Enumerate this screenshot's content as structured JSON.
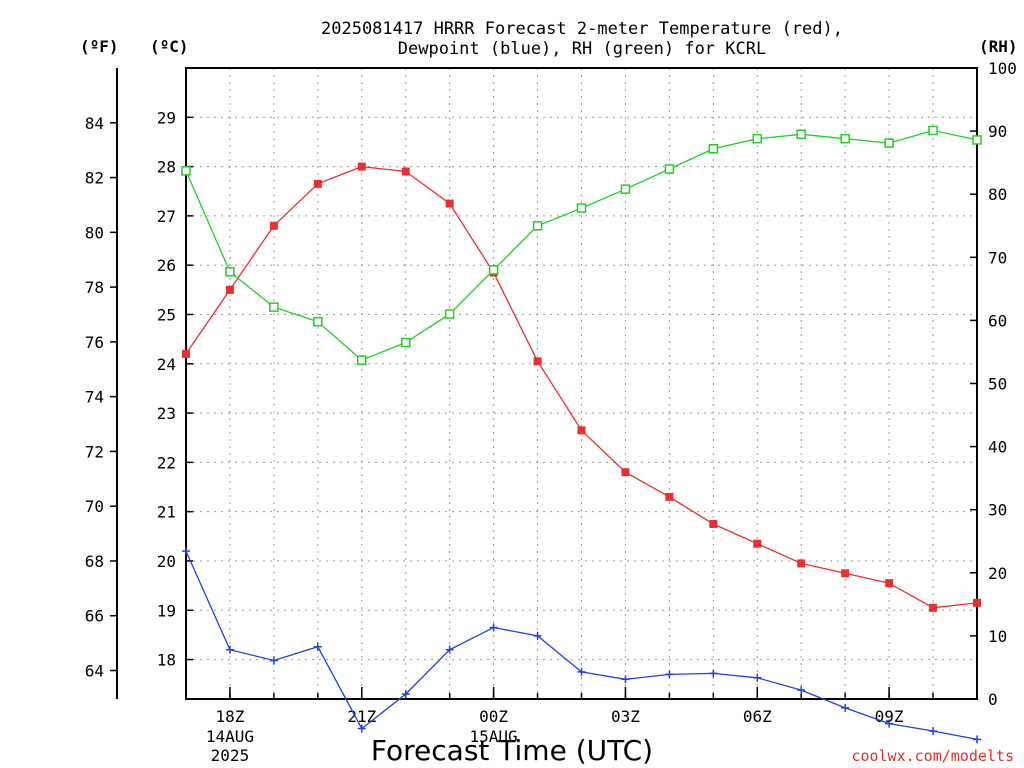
{
  "chart_data": {
    "type": "line",
    "title_line1": "2025081417 HRRR Forecast 2-meter Temperature (red),",
    "title_line2": "Dewpoint (blue), RH (green) for KCRL",
    "xlabel": "Forecast Time (UTC)",
    "credit": "coolwx.com/modelts",
    "units": {
      "fahrenheit": "(ºF)",
      "celsius": "(ºC)",
      "rh": "(RH)"
    },
    "x_hours": [
      17,
      18,
      19,
      20,
      21,
      22,
      23,
      24,
      25,
      26,
      27,
      28,
      29,
      30,
      31,
      32,
      33,
      34,
      35
    ],
    "x_range": [
      17,
      35
    ],
    "x_ticks": [
      {
        "hour": 18,
        "label": "18Z",
        "sub1": "14AUG",
        "sub2": "2025"
      },
      {
        "hour": 21,
        "label": "21Z",
        "sub1": "",
        "sub2": ""
      },
      {
        "hour": 24,
        "label": "00Z",
        "sub1": "15AUG",
        "sub2": ""
      },
      {
        "hour": 27,
        "label": "03Z",
        "sub1": "",
        "sub2": ""
      },
      {
        "hour": 30,
        "label": "06Z",
        "sub1": "",
        "sub2": ""
      },
      {
        "hour": 33,
        "label": "09Z",
        "sub1": "",
        "sub2": ""
      }
    ],
    "celsius_range": [
      17.2,
      30.0
    ],
    "celsius_ticks": [
      18,
      19,
      20,
      21,
      22,
      23,
      24,
      25,
      26,
      27,
      28,
      29
    ],
    "fahrenheit_ticks": [
      64,
      66,
      68,
      70,
      72,
      74,
      76,
      78,
      80,
      82,
      84
    ],
    "rh_range": [
      0,
      100
    ],
    "rh_ticks": [
      0,
      10,
      20,
      30,
      40,
      50,
      60,
      70,
      80,
      90,
      100
    ],
    "grid": true,
    "series": [
      {
        "name": "Temperature (red)",
        "axis": "celsius",
        "color": "#e83030",
        "marker": "filled-square",
        "values": [
          24.2,
          25.5,
          26.8,
          27.65,
          28.0,
          27.9,
          27.25,
          25.85,
          24.05,
          22.65,
          21.8,
          21.3,
          20.75,
          20.35,
          19.95,
          19.75,
          19.55,
          19.05,
          19.15
        ]
      },
      {
        "name": "Dewpoint (blue)",
        "axis": "celsius",
        "color": "#2040e0",
        "marker": "plus",
        "values": [
          20.2,
          18.2,
          17.98,
          18.26,
          16.6,
          17.3,
          18.2,
          18.65,
          18.48,
          17.75,
          17.6,
          17.7,
          17.72,
          17.63,
          17.38,
          17.02,
          16.7,
          16.55,
          16.38
        ]
      },
      {
        "name": "RH (green)",
        "axis": "rh",
        "color": "#20d020",
        "marker": "open-square",
        "values": [
          83.7,
          67.7,
          62.1,
          59.8,
          53.7,
          56.5,
          61.0,
          68.0,
          75.0,
          77.8,
          80.8,
          84.0,
          87.2,
          88.8,
          89.5,
          88.8,
          88.1,
          90.1,
          88.6
        ]
      }
    ]
  }
}
